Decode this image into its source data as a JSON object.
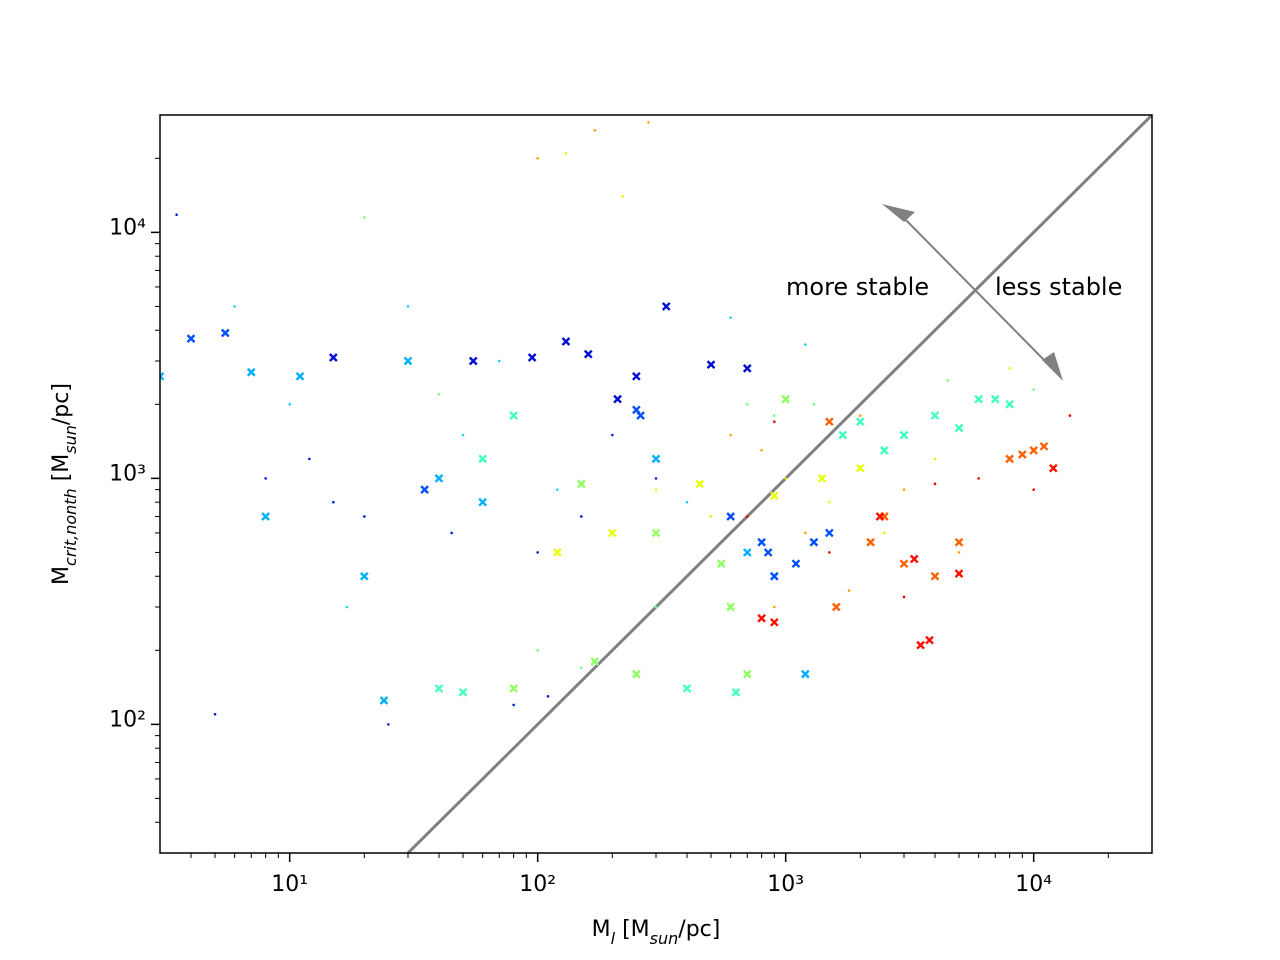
{
  "chart_data": {
    "type": "scatter",
    "x_label": [
      {
        "text": "M"
      },
      {
        "text": "l",
        "style": "sub"
      },
      {
        "text": " [M"
      },
      {
        "text": "sun",
        "style": "sub"
      },
      {
        "text": "/pc]"
      }
    ],
    "y_label": [
      {
        "text": "M"
      },
      {
        "text": "crit,nonth",
        "style": "sub"
      },
      {
        "text": " [M"
      },
      {
        "text": "sun",
        "style": "sub"
      },
      {
        "text": "/pc]"
      }
    ],
    "annotations": [
      "more stable",
      "less stable"
    ],
    "log_x": true,
    "log_y": true,
    "xlim": [
      3,
      30000
    ],
    "ylim": [
      30,
      30000
    ],
    "xticks": [
      {
        "value": 10,
        "label": "10¹"
      },
      {
        "value": 100,
        "label": "10²"
      },
      {
        "value": 1000,
        "label": "10³"
      },
      {
        "value": 10000,
        "label": "10⁴"
      }
    ],
    "yticks": [
      {
        "value": 100,
        "label": "10²"
      },
      {
        "value": 1000,
        "label": "10³"
      },
      {
        "value": 10000,
        "label": "10⁴"
      }
    ],
    "xminorticks": [
      4,
      5,
      6,
      7,
      8,
      9,
      20,
      30,
      40,
      50,
      60,
      70,
      80,
      90,
      200,
      300,
      400,
      500,
      600,
      700,
      800,
      900,
      2000,
      3000,
      4000,
      5000,
      6000,
      7000,
      8000,
      9000,
      20000
    ],
    "yminorticks": [
      40,
      50,
      60,
      70,
      80,
      90,
      200,
      300,
      400,
      500,
      600,
      700,
      800,
      900,
      2000,
      3000,
      4000,
      5000,
      6000,
      7000,
      8000,
      9000,
      20000
    ],
    "identity_line": true,
    "identity_line_color": "#808080",
    "series": [
      {
        "marker": "x",
        "color": "#0010d0",
        "x": [
          15,
          130,
          95,
          160,
          210,
          250,
          500,
          700,
          55,
          330
        ],
        "values": [
          3100,
          3600,
          3100,
          3200,
          2100,
          2600,
          2900,
          2800,
          3000,
          5000
        ]
      },
      {
        "marker": "x",
        "color": "#0050ff",
        "x": [
          4,
          5.5,
          250,
          260,
          800,
          1300,
          1500,
          850,
          900,
          1100,
          600,
          35
        ],
        "values": [
          3700,
          3900,
          1900,
          1800,
          550,
          550,
          600,
          500,
          400,
          450,
          700,
          900
        ]
      },
      {
        "marker": "dot",
        "color": "#0020e0",
        "x": [
          3.5,
          8,
          12,
          45,
          60,
          100,
          150,
          200,
          300,
          110,
          80,
          25,
          15,
          5,
          20
        ],
        "values": [
          11800,
          1000,
          1200,
          600,
          800,
          500,
          700,
          1500,
          1000,
          130,
          120,
          100,
          800,
          110,
          700
        ]
      },
      {
        "marker": "x",
        "color": "#00b0ff",
        "x": [
          3,
          7,
          11,
          24,
          30,
          40,
          60,
          20,
          8,
          300,
          700,
          1200
        ],
        "values": [
          2600,
          2700,
          2600,
          125,
          3000,
          1000,
          800,
          400,
          700,
          1200,
          500,
          160
        ]
      },
      {
        "marker": "dot",
        "color": "#20d0f0",
        "x": [
          6,
          10,
          30,
          50,
          70,
          17,
          120,
          600,
          1200,
          400
        ],
        "values": [
          5000,
          2000,
          5000,
          1500,
          3000,
          300,
          900,
          4500,
          3500,
          800
        ]
      },
      {
        "marker": "x",
        "color": "#40ffc0",
        "x": [
          40,
          50,
          60,
          80,
          400,
          630,
          2000,
          2500,
          3000,
          4000,
          7000,
          8000,
          6000,
          5000,
          1700
        ],
        "values": [
          140,
          135,
          1200,
          1800,
          140,
          135,
          1700,
          1300,
          1500,
          1800,
          2100,
          2000,
          2100,
          1600,
          1500
        ]
      },
      {
        "marker": "dot",
        "color": "#70ff80",
        "x": [
          100,
          150,
          700,
          900,
          40,
          20,
          300,
          1300,
          10000,
          4500
        ],
        "values": [
          200,
          170,
          2000,
          1800,
          2200,
          11500,
          300,
          2000,
          2300,
          2500
        ]
      },
      {
        "marker": "x",
        "color": "#90ff60",
        "x": [
          80,
          170,
          250,
          600,
          700,
          1000,
          300,
          550,
          150
        ],
        "values": [
          140,
          180,
          160,
          300,
          160,
          2100,
          600,
          450,
          950
        ]
      },
      {
        "marker": "dot",
        "color": "#f0f000",
        "x": [
          130,
          220,
          300,
          500,
          1000,
          1500,
          2500,
          4000,
          8000,
          200
        ],
        "values": [
          21000,
          14000,
          900,
          700,
          1000,
          800,
          600,
          1200,
          2800,
          600
        ]
      },
      {
        "marker": "x",
        "color": "#e8ff10",
        "x": [
          200,
          450,
          900,
          1400,
          120,
          2000
        ],
        "values": [
          600,
          950,
          850,
          1000,
          500,
          1100
        ]
      },
      {
        "marker": "dot",
        "color": "#ffa000",
        "x": [
          280,
          170,
          100,
          800,
          1200,
          2000,
          3000,
          5000,
          12000,
          1800,
          600,
          900
        ],
        "values": [
          28000,
          26000,
          20000,
          1300,
          600,
          1800,
          900,
          500,
          1100,
          350,
          1500,
          300
        ]
      },
      {
        "marker": "x",
        "color": "#ff6000",
        "x": [
          1500,
          2200,
          3000,
          4000,
          10000,
          11000,
          9000,
          1600,
          2500,
          5000,
          8000
        ],
        "values": [
          1700,
          550,
          450,
          400,
          1300,
          1350,
          1250,
          300,
          700,
          550,
          1200
        ]
      },
      {
        "marker": "x",
        "color": "#ff1000",
        "x": [
          800,
          900,
          3300,
          3800,
          5000,
          12000,
          3500,
          2400
        ],
        "values": [
          270,
          260,
          470,
          220,
          410,
          1100,
          210,
          700
        ]
      },
      {
        "marker": "dot",
        "color": "#dd0000",
        "x": [
          900,
          4000,
          6000,
          14000,
          1500,
          3000,
          700,
          10000
        ],
        "values": [
          1700,
          950,
          1000,
          1800,
          500,
          330,
          700,
          900
        ]
      }
    ]
  }
}
